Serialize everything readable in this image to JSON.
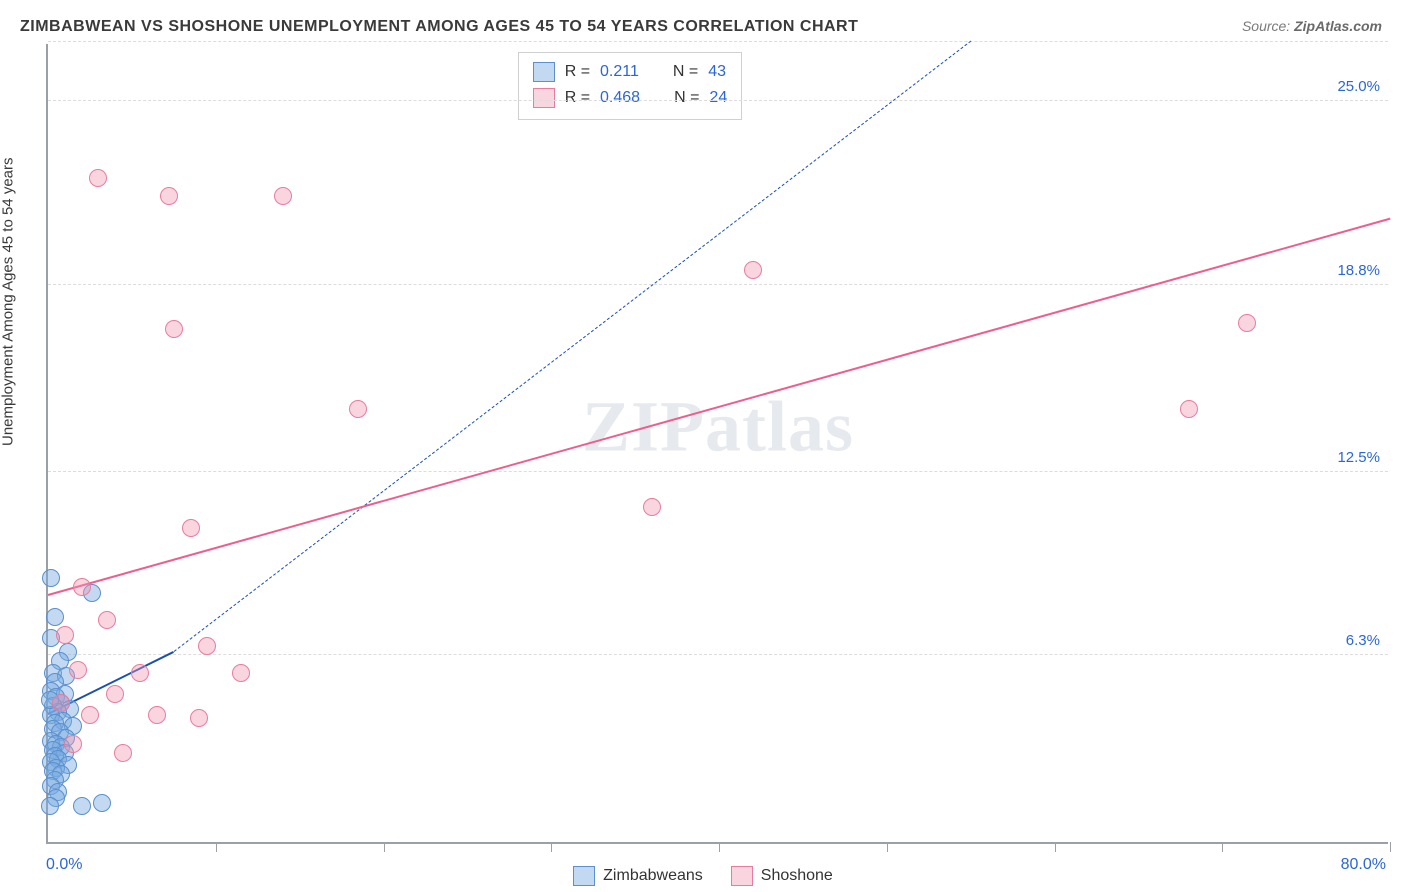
{
  "title": "ZIMBABWEAN VS SHOSHONE UNEMPLOYMENT AMONG AGES 45 TO 54 YEARS CORRELATION CHART",
  "source_prefix": "Source: ",
  "source_name": "ZipAtlas.com",
  "watermark": "ZIPatlas",
  "y_axis_label": "Unemployment Among Ages 45 to 54 years",
  "chart": {
    "type": "scatter",
    "xlim": [
      0,
      80
    ],
    "ylim": [
      0,
      27
    ],
    "x_ticks": [
      10,
      20,
      30,
      40,
      50,
      60,
      70,
      80
    ],
    "y_gridlines": [
      6.3,
      12.5,
      18.8,
      25.0,
      27.0
    ],
    "y_tick_labels": [
      "6.3%",
      "12.5%",
      "18.8%",
      "25.0%"
    ],
    "x_min_label": "0.0%",
    "x_max_label": "80.0%",
    "axis_value_color": "#2b66d9",
    "grid_color": "#dcdcdc",
    "axis_color": "#9aa0a6",
    "background_color": "#ffffff",
    "point_radius": 9,
    "series": [
      {
        "name": "Zimbabweans",
        "fill": "rgba(120, 170, 225, 0.45)",
        "stroke": "#5b8fce",
        "R_label": "R  =",
        "R_value": "0.211",
        "N_label": "N  =",
        "N_value": "43",
        "trend": {
          "x1": 0,
          "y1": 4.3,
          "x2": 7.5,
          "y2": 6.4,
          "color": "#1a4fb3",
          "width": 2,
          "dash": "none",
          "ext_x2": 55,
          "ext_y2": 27.0,
          "ext_dash": "7 6"
        },
        "points": [
          [
            0.2,
            8.9
          ],
          [
            2.6,
            8.4
          ],
          [
            0.4,
            7.6
          ],
          [
            0.2,
            6.9
          ],
          [
            1.2,
            6.4
          ],
          [
            0.7,
            6.1
          ],
          [
            0.3,
            5.7
          ],
          [
            1.1,
            5.6
          ],
          [
            0.4,
            5.4
          ],
          [
            0.2,
            5.1
          ],
          [
            1.0,
            5.0
          ],
          [
            0.5,
            4.9
          ],
          [
            0.8,
            4.7
          ],
          [
            0.3,
            4.6
          ],
          [
            1.3,
            4.5
          ],
          [
            0.6,
            4.4
          ],
          [
            0.2,
            4.3
          ],
          [
            0.9,
            4.1
          ],
          [
            0.4,
            4.0
          ],
          [
            1.5,
            3.9
          ],
          [
            0.3,
            3.8
          ],
          [
            0.7,
            3.7
          ],
          [
            1.1,
            3.5
          ],
          [
            0.2,
            3.4
          ],
          [
            0.5,
            3.3
          ],
          [
            0.8,
            3.2
          ],
          [
            0.3,
            3.1
          ],
          [
            1.0,
            3.0
          ],
          [
            0.4,
            2.9
          ],
          [
            0.6,
            2.8
          ],
          [
            0.2,
            2.7
          ],
          [
            1.2,
            2.6
          ],
          [
            0.5,
            2.5
          ],
          [
            0.3,
            2.4
          ],
          [
            0.8,
            2.3
          ],
          [
            0.4,
            2.1
          ],
          [
            0.2,
            1.9
          ],
          [
            0.6,
            1.7
          ],
          [
            0.5,
            1.5
          ],
          [
            3.2,
            1.3
          ],
          [
            0.1,
            1.2
          ],
          [
            2.0,
            1.2
          ],
          [
            0.1,
            4.8
          ]
        ]
      },
      {
        "name": "Shoshone",
        "fill": "rgba(240, 150, 175, 0.40)",
        "stroke": "#e87ca0",
        "R_label": "R  =",
        "R_value": "0.468",
        "N_label": "N  =",
        "N_value": "24",
        "trend": {
          "x1": 0,
          "y1": 8.3,
          "x2": 80,
          "y2": 21.0,
          "color": "#ee5e8c",
          "width": 2.5,
          "dash": "none"
        },
        "points": [
          [
            3.0,
            22.4
          ],
          [
            7.2,
            21.8
          ],
          [
            14.0,
            21.8
          ],
          [
            42.0,
            19.3
          ],
          [
            71.5,
            17.5
          ],
          [
            68.0,
            14.6
          ],
          [
            7.5,
            17.3
          ],
          [
            18.5,
            14.6
          ],
          [
            36.0,
            11.3
          ],
          [
            8.5,
            10.6
          ],
          [
            2.0,
            8.6
          ],
          [
            3.5,
            7.5
          ],
          [
            1.0,
            7.0
          ],
          [
            9.5,
            6.6
          ],
          [
            1.8,
            5.8
          ],
          [
            5.5,
            5.7
          ],
          [
            11.5,
            5.7
          ],
          [
            4.0,
            5.0
          ],
          [
            0.8,
            4.7
          ],
          [
            6.5,
            4.3
          ],
          [
            2.5,
            4.3
          ],
          [
            9.0,
            4.2
          ],
          [
            1.5,
            3.3
          ],
          [
            4.5,
            3.0
          ]
        ]
      }
    ]
  },
  "legend_bottom": [
    "Zimbabweans",
    "Shoshone"
  ]
}
